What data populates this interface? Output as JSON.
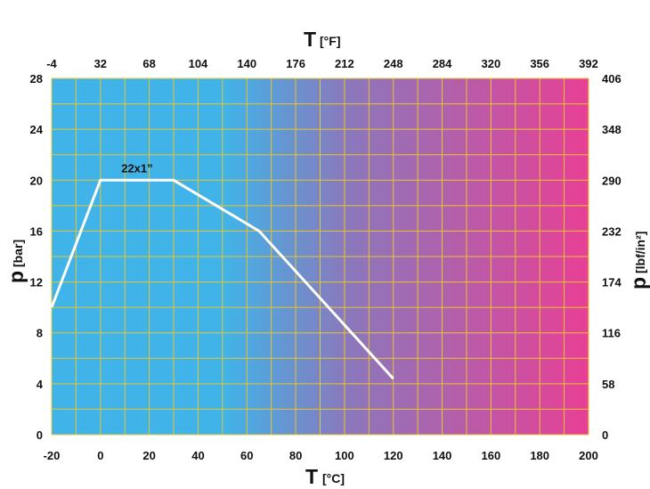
{
  "chart_data": {
    "type": "line",
    "x_bottom": {
      "label": "T",
      "unit": "[°C]",
      "range": [
        -20,
        200
      ],
      "ticks": [
        "-20",
        "0",
        "20",
        "40",
        "60",
        "80",
        "100",
        "120",
        "140",
        "160",
        "180",
        "200"
      ]
    },
    "x_top": {
      "label": "T",
      "unit": "[°F]",
      "range": [
        -4,
        392
      ],
      "ticks": [
        "-4",
        "32",
        "68",
        "104",
        "140",
        "176",
        "212",
        "248",
        "284",
        "320",
        "356",
        "392"
      ]
    },
    "y_left": {
      "label": "p",
      "unit": "[bar]",
      "range": [
        0,
        28
      ],
      "ticks": [
        "0",
        "4",
        "8",
        "12",
        "16",
        "20",
        "24",
        "28"
      ]
    },
    "y_right": {
      "label": "p",
      "unit": "[lbf/in²]",
      "range": [
        0,
        406
      ],
      "ticks": [
        "0",
        "58",
        "116",
        "174",
        "232",
        "290",
        "348",
        "406"
      ]
    },
    "grid": true,
    "series": [
      {
        "name": "22x1”",
        "x": [
          -20,
          0,
          30,
          65,
          120
        ],
        "y": [
          10,
          20,
          20,
          16,
          4.4
        ]
      }
    ],
    "colors": {
      "gradient_start": "#40b4e8",
      "gradient_mid": "#8a78bc",
      "gradient_end": "#e83f95",
      "grid": "#e8c430",
      "line": "#ffffff"
    }
  }
}
